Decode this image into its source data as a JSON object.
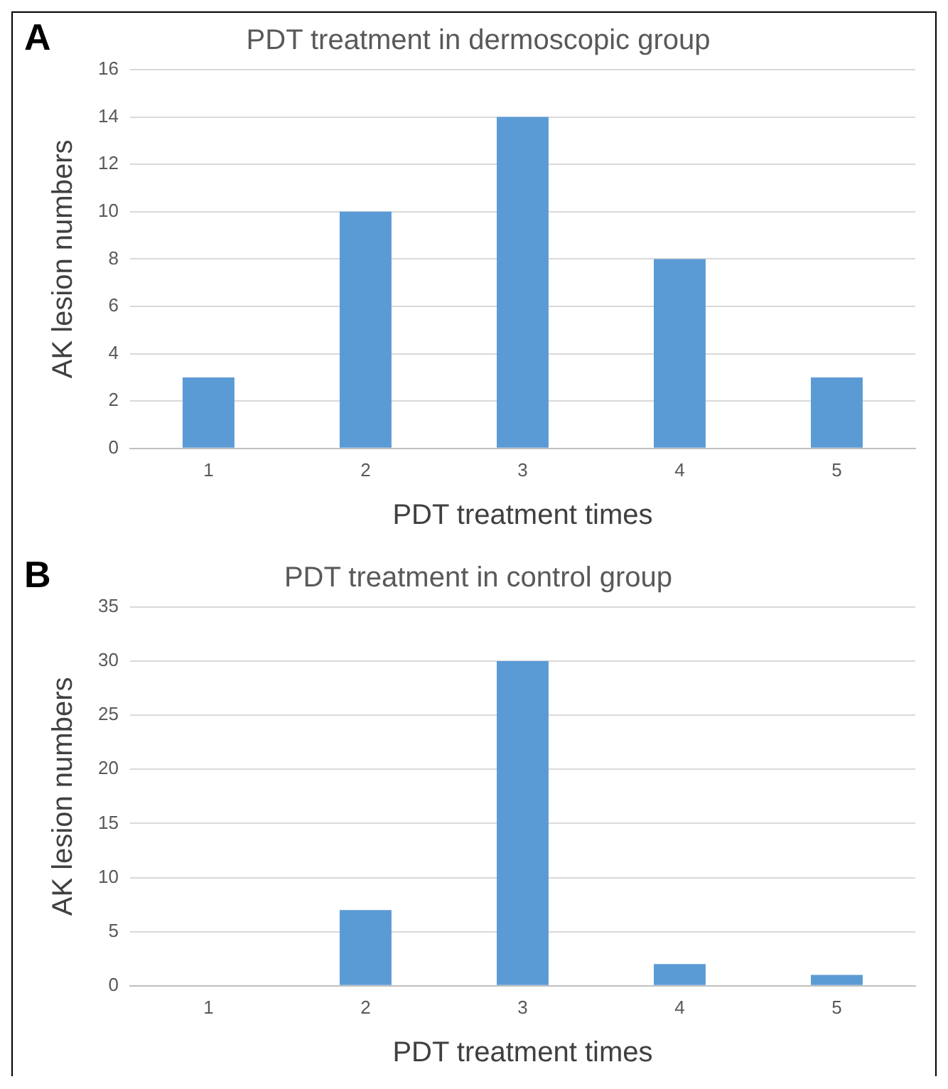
{
  "chart_data": [
    {
      "type": "bar",
      "title": "PDT treatment in dermoscopic group",
      "xlabel": "PDT treatment times",
      "ylabel": "AK lesion numbers",
      "annotations": [
        "A"
      ],
      "categories": [
        "1",
        "2",
        "3",
        "4",
        "5"
      ],
      "values": [
        3,
        10,
        14,
        8,
        3
      ],
      "color": "#5b9bd5",
      "ylim": [
        0,
        16
      ],
      "yticks": [
        0,
        2,
        4,
        6,
        8,
        10,
        12,
        14,
        16
      ],
      "grid": "y",
      "legend": false
    },
    {
      "type": "bar",
      "title": "PDT treatment in control group",
      "xlabel": "PDT treatment times",
      "ylabel": "AK lesion numbers",
      "annotations": [
        "B"
      ],
      "categories": [
        "1",
        "2",
        "3",
        "4",
        "5"
      ],
      "values": [
        0,
        7,
        30,
        2,
        1
      ],
      "color": "#5b9bd5",
      "ylim": [
        0,
        35
      ],
      "yticks": [
        0,
        5,
        10,
        15,
        20,
        25,
        30,
        35
      ],
      "grid": "y",
      "legend": false
    }
  ]
}
